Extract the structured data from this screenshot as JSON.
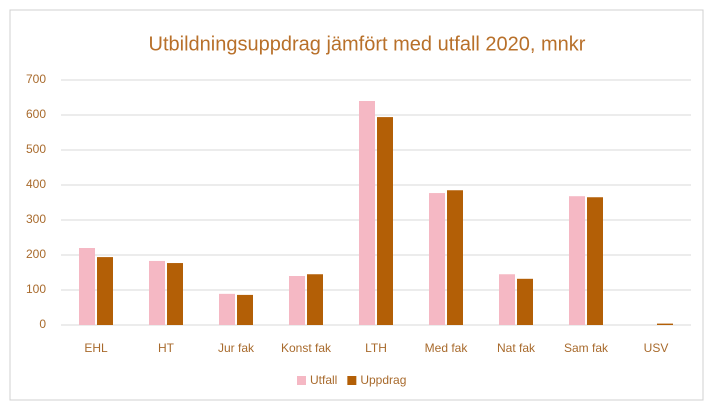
{
  "chart_data": {
    "type": "bar",
    "title": "Utbildningsuppdrag jämfört med utfall 2020, mnkr",
    "categories": [
      "EHL",
      "HT",
      "Jur fak",
      "Konst fak",
      "LTH",
      "Med fak",
      "Nat fak",
      "Sam fak",
      "USV"
    ],
    "series": [
      {
        "name": "Utfall",
        "color": "#f5b8c4",
        "values": [
          220,
          183,
          89,
          140,
          640,
          377,
          145,
          368,
          0
        ]
      },
      {
        "name": "Uppdrag",
        "color": "#b35f06",
        "values": [
          194,
          177,
          86,
          145,
          594,
          385,
          132,
          365,
          4
        ]
      }
    ],
    "ylim": [
      0,
      700
    ],
    "yticks": [
      0,
      100,
      200,
      300,
      400,
      500,
      600,
      700
    ],
    "grid": true,
    "legend": "bottom"
  }
}
